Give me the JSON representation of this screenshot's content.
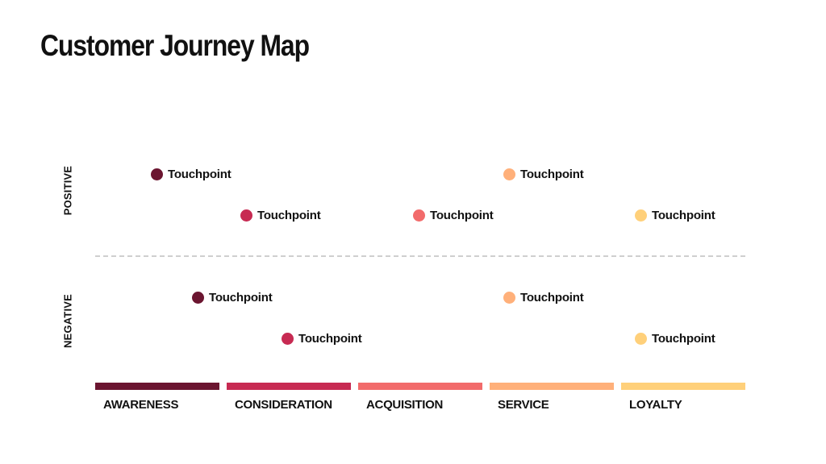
{
  "title": "Customer Journey Map",
  "axis": {
    "positive": "POSITIVE",
    "negative": "NEGATIVE"
  },
  "colors": {
    "awareness": "#6b1530",
    "consideration": "#c72a52",
    "acquisition": "#f26b6b",
    "service": "#ffb07a",
    "loyalty": "#ffd07a"
  },
  "stages": [
    {
      "label": "AWARENESS",
      "color": "#6b1530"
    },
    {
      "label": "CONSIDERATION",
      "color": "#c72a52"
    },
    {
      "label": "ACQUISITION",
      "color": "#f26b6b"
    },
    {
      "label": "SERVICE",
      "color": "#ffb07a"
    },
    {
      "label": "LOYALTY",
      "color": "#ffd07a"
    }
  ],
  "touchpoints": [
    {
      "label": "Touchpoint",
      "stage": "AWARENESS",
      "sentiment": "positive"
    },
    {
      "label": "Touchpoint",
      "stage": "SERVICE",
      "sentiment": "positive"
    },
    {
      "label": "Touchpoint",
      "stage": "CONSIDERATION",
      "sentiment": "positive"
    },
    {
      "label": "Touchpoint",
      "stage": "ACQUISITION",
      "sentiment": "positive"
    },
    {
      "label": "Touchpoint",
      "stage": "LOYALTY",
      "sentiment": "positive"
    },
    {
      "label": "Touchpoint",
      "stage": "AWARENESS",
      "sentiment": "negative"
    },
    {
      "label": "Touchpoint",
      "stage": "SERVICE",
      "sentiment": "negative"
    },
    {
      "label": "Touchpoint",
      "stage": "CONSIDERATION",
      "sentiment": "negative"
    },
    {
      "label": "Touchpoint",
      "stage": "LOYALTY",
      "sentiment": "negative"
    }
  ]
}
